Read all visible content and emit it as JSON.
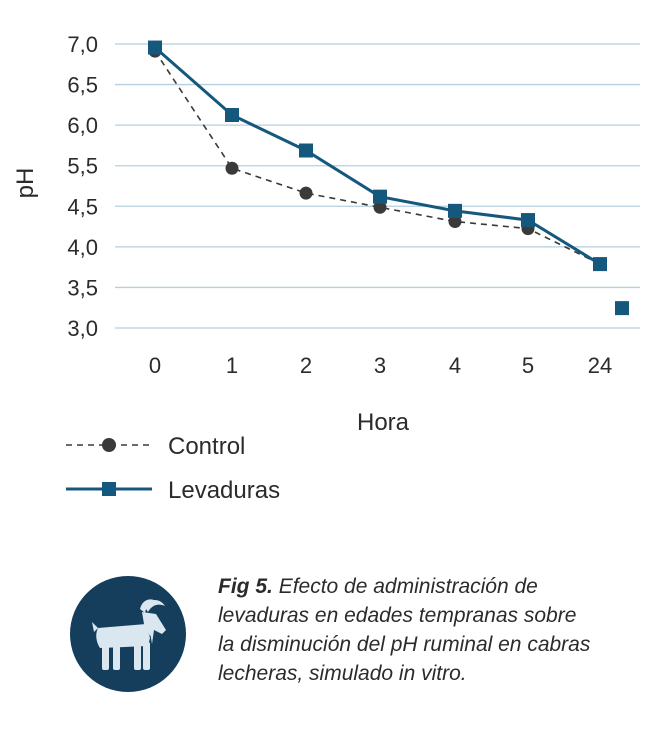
{
  "chart_data": {
    "type": "line",
    "categories": [
      "0",
      "1",
      "2",
      "3",
      "4",
      "5",
      "24"
    ],
    "ylabel": "pH",
    "xlabel": "Hora",
    "yticks": [
      "3,0",
      "3,5",
      "4,0",
      "4,5",
      "5,5",
      "6,0",
      "6,5",
      "7,0"
    ],
    "yrange": [
      3.0,
      7.0
    ],
    "grid": "horizontal",
    "legend_position": "bottom-left",
    "series": [
      {
        "name": "Control",
        "style": "dashed",
        "marker": "circle",
        "color": "#3a3a3a",
        "values": [
          6.9,
          5.25,
          4.9,
          4.7,
          4.5,
          4.4,
          3.9
        ]
      },
      {
        "name": "Levaduras",
        "style": "solid",
        "marker": "square",
        "color": "#14587e",
        "values": [
          6.95,
          6.0,
          5.5,
          4.85,
          4.65,
          4.52,
          3.9
        ],
        "extra_point": {
          "x_position_after": "24",
          "value": 3.28
        }
      }
    ]
  },
  "caption": {
    "fig_label": "Fig 5.",
    "text": "Efecto de administración de levaduras en edades tempranas sobre la disminución del pH ruminal en cabras lecheras, simulado in vitro."
  },
  "badge": {
    "icon": "goat-icon",
    "color": "#143e5c"
  }
}
